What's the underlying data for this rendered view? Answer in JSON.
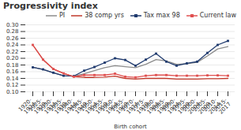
{
  "chart_data": {
    "type": "line",
    "title": "Progressivity index",
    "xlabel": "Birth cohort",
    "categories": [
      "1920-\n1924",
      "1925-\n1929",
      "1930-\n1934",
      "1935-\n1939",
      "1940-\n1944",
      "1945-\n1949",
      "1950-\n1954",
      "1955-\n1959",
      "1960-\n1964",
      "1965-\n1969",
      "1970-\n1974",
      "1975-\n1979",
      "1980-\n1984",
      "1985-\n1989",
      "1990-\n1994",
      "1995-\n1999",
      "2000-\n2004",
      "2005-\n2009",
      "2010-\n2014",
      "2015-\n2017"
    ],
    "series": [
      {
        "name": "PI",
        "color": "#8c8c8c",
        "values": [
          0.173,
          0.167,
          0.157,
          0.148,
          0.147,
          0.154,
          0.163,
          0.172,
          0.178,
          0.175,
          0.172,
          0.182,
          0.196,
          0.192,
          0.182,
          0.184,
          0.188,
          0.207,
          0.228,
          0.235
        ]
      },
      {
        "name": "38 comp yrs",
        "color": "#c0392b",
        "values": [
          0.24,
          0.196,
          0.168,
          0.155,
          0.145,
          0.143,
          0.143,
          0.144,
          0.147,
          0.14,
          0.138,
          0.14,
          0.14,
          0.14,
          0.138,
          0.138,
          0.138,
          0.139,
          0.139,
          0.14
        ]
      },
      {
        "name": "Tax max 98",
        "color": "#1f3a6e",
        "marker": "square",
        "values": [
          0.173,
          0.167,
          0.157,
          0.148,
          0.147,
          0.163,
          0.174,
          0.187,
          0.2,
          0.195,
          0.178,
          0.196,
          0.214,
          0.19,
          0.178,
          0.185,
          0.19,
          0.216,
          0.24,
          0.252
        ]
      },
      {
        "name": "Current law",
        "color": "#e05050",
        "marker": "square",
        "values": [
          0.24,
          0.196,
          0.168,
          0.155,
          0.145,
          0.15,
          0.15,
          0.15,
          0.154,
          0.145,
          0.143,
          0.148,
          0.15,
          0.15,
          0.148,
          0.148,
          0.148,
          0.149,
          0.149,
          0.148
        ]
      }
    ],
    "ylim": [
      0.1,
      0.3
    ],
    "yticks": [
      {
        "value": 0.1,
        "label": "0.10"
      },
      0.12,
      0.14,
      0.16,
      0.18,
      {
        "value": 0.2,
        "label": "0.20"
      },
      0.22,
      0.24,
      0.26,
      0.28,
      {
        "value": 0.3,
        "label": "0.30"
      }
    ],
    "grid": true,
    "legend": "upper right"
  }
}
